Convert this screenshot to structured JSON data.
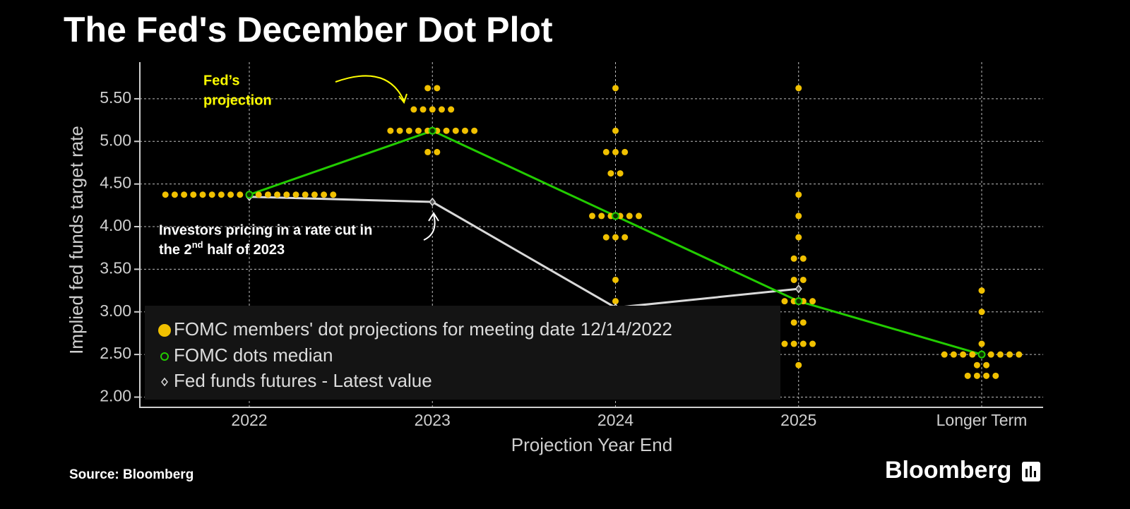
{
  "chart_data": {
    "type": "scatter",
    "title": "The Fed's December Dot Plot",
    "y_label": "Implied fed funds target rate",
    "x_label": "Projection Year End",
    "categories": [
      "2022",
      "2023",
      "2024",
      "2025",
      "Longer Term"
    ],
    "ylim": [
      1.88,
      5.93
    ],
    "yticks": [
      {
        "value": 2,
        "label": "2.00"
      },
      {
        "value": 2.5,
        "label": "2.50"
      },
      {
        "value": 3,
        "label": "3.00"
      },
      {
        "value": 3.5,
        "label": "3.50"
      },
      {
        "value": 4,
        "label": "4.00"
      },
      {
        "value": 4.5,
        "label": "4.50"
      },
      {
        "value": 5,
        "label": "5.00"
      },
      {
        "value": 5.5,
        "label": "5.50"
      }
    ],
    "grid": true,
    "legend": "bottom-left",
    "series": [
      {
        "name": "FOMC members' dot projections for meeting date 12/14/2022",
        "color": "#f0c000",
        "dots": [
          [
            {
              "value": 4.375,
              "count": 19
            }
          ],
          [
            {
              "value": 5.625,
              "count": 2
            },
            {
              "value": 5.375,
              "count": 5
            },
            {
              "value": 5.125,
              "count": 10
            },
            {
              "value": 4.875,
              "count": 2
            }
          ],
          [
            {
              "value": 5.625,
              "count": 1
            },
            {
              "value": 5.125,
              "count": 1
            },
            {
              "value": 4.875,
              "count": 3
            },
            {
              "value": 4.625,
              "count": 2
            },
            {
              "value": 4.125,
              "count": 6
            },
            {
              "value": 3.875,
              "count": 3
            },
            {
              "value": 3.375,
              "count": 1
            },
            {
              "value": 3.125,
              "count": 1
            }
          ],
          [
            {
              "value": 5.625,
              "count": 1
            },
            {
              "value": 4.375,
              "count": 1
            },
            {
              "value": 4.125,
              "count": 1
            },
            {
              "value": 3.875,
              "count": 1
            },
            {
              "value": 3.625,
              "count": 2
            },
            {
              "value": 3.375,
              "count": 2
            },
            {
              "value": 3.125,
              "count": 4
            },
            {
              "value": 2.875,
              "count": 2
            },
            {
              "value": 2.625,
              "count": 4
            },
            {
              "value": 2.375,
              "count": 1
            }
          ],
          [
            {
              "value": 3.25,
              "count": 1
            },
            {
              "value": 3.0,
              "count": 1
            },
            {
              "value": 2.625,
              "count": 1
            },
            {
              "value": 2.5,
              "count": 9
            },
            {
              "value": 2.375,
              "count": 2
            },
            {
              "value": 2.25,
              "count": 4
            }
          ]
        ]
      },
      {
        "name": "FOMC dots median",
        "color": "#22cc00",
        "values": [
          4.375,
          5.125,
          4.125,
          3.125,
          2.5
        ]
      },
      {
        "name": "Fed funds futures - Latest value",
        "color": "#d9d9d9",
        "values": [
          4.35,
          4.29,
          3.05,
          3.27,
          null
        ]
      }
    ],
    "annotations": [
      {
        "lines": [
          "Fed’s",
          "projection"
        ],
        "color": "#ffff00"
      },
      {
        "lines": [
          "Investors pricing in a rate cut in",
          "the 2"
        ],
        "superscript": "nd",
        "tail": " half of 2023",
        "color": "#ffffff"
      }
    ],
    "source": "Source: Bloomberg",
    "brand": "Bloomberg"
  }
}
